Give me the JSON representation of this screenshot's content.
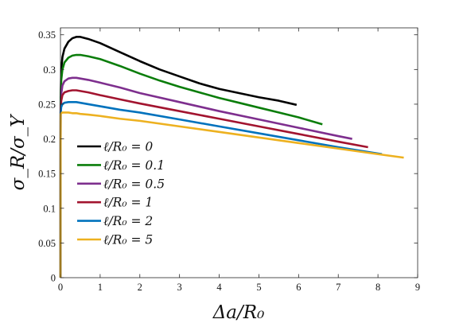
{
  "chart_data": {
    "type": "line",
    "xlabel": "Δa/R₀",
    "ylabel": "σ_R/σ_Y",
    "xlim": [
      0,
      9
    ],
    "ylim": [
      0,
      0.36
    ],
    "xticks": [
      0,
      1,
      2,
      3,
      4,
      5,
      6,
      7,
      8,
      9
    ],
    "yticks": [
      0,
      0.05,
      0.1,
      0.15,
      0.2,
      0.25,
      0.3,
      0.35
    ],
    "xtick_labels": [
      "0",
      "1",
      "2",
      "3",
      "4",
      "5",
      "6",
      "7",
      "8",
      "9"
    ],
    "ytick_labels": [
      "0",
      "0.05",
      "0.1",
      "0.15",
      "0.2",
      "0.25",
      "0.3",
      "0.35"
    ],
    "grid": false,
    "legend_position": "center-left",
    "series": [
      {
        "name": "ℓ/R₀ = 0",
        "color": "#000000",
        "x": [
          0,
          0.005,
          0.02,
          0.05,
          0.1,
          0.2,
          0.3,
          0.4,
          0.5,
          0.7,
          1.0,
          1.5,
          2.0,
          2.5,
          3.0,
          3.5,
          4.0,
          4.5,
          5.0,
          5.5,
          5.95
        ],
        "y": [
          0,
          0.26,
          0.3,
          0.318,
          0.33,
          0.34,
          0.345,
          0.347,
          0.347,
          0.344,
          0.338,
          0.325,
          0.312,
          0.3,
          0.29,
          0.28,
          0.272,
          0.266,
          0.26,
          0.255,
          0.249
        ]
      },
      {
        "name": "ℓ/R₀ = 0.1",
        "color": "#0a7d0a",
        "x": [
          0,
          0.005,
          0.02,
          0.05,
          0.1,
          0.2,
          0.3,
          0.4,
          0.5,
          0.7,
          1.0,
          1.5,
          2.0,
          2.5,
          3.0,
          3.5,
          4.0,
          4.5,
          5.0,
          5.5,
          6.0,
          6.6
        ],
        "y": [
          0,
          0.25,
          0.285,
          0.3,
          0.31,
          0.317,
          0.32,
          0.321,
          0.321,
          0.319,
          0.315,
          0.305,
          0.294,
          0.284,
          0.275,
          0.267,
          0.259,
          0.252,
          0.245,
          0.238,
          0.231,
          0.221
        ]
      },
      {
        "name": "ℓ/R₀ = 0.5",
        "color": "#7e2f8e",
        "x": [
          0,
          0.005,
          0.02,
          0.05,
          0.1,
          0.2,
          0.3,
          0.4,
          0.5,
          0.7,
          1.0,
          1.5,
          2.0,
          3.0,
          4.0,
          5.0,
          6.0,
          7.0,
          7.35
        ],
        "y": [
          0,
          0.24,
          0.265,
          0.277,
          0.283,
          0.287,
          0.288,
          0.288,
          0.287,
          0.285,
          0.281,
          0.274,
          0.266,
          0.253,
          0.24,
          0.228,
          0.216,
          0.204,
          0.2
        ]
      },
      {
        "name": "ℓ/R₀ = 1",
        "color": "#a2142f",
        "x": [
          0,
          0.005,
          0.02,
          0.05,
          0.1,
          0.2,
          0.3,
          0.4,
          0.5,
          0.7,
          1.0,
          1.5,
          2.0,
          3.0,
          4.0,
          5.0,
          6.0,
          7.0,
          7.75
        ],
        "y": [
          0,
          0.238,
          0.255,
          0.263,
          0.267,
          0.269,
          0.27,
          0.27,
          0.269,
          0.267,
          0.263,
          0.257,
          0.251,
          0.24,
          0.229,
          0.218,
          0.207,
          0.196,
          0.188
        ]
      },
      {
        "name": "ℓ/R₀ = 2",
        "color": "#0072bd",
        "x": [
          0,
          0.005,
          0.02,
          0.05,
          0.1,
          0.2,
          0.3,
          0.4,
          0.5,
          0.7,
          1.0,
          1.5,
          2.0,
          3.0,
          4.0,
          5.0,
          6.0,
          7.0,
          8.1
        ],
        "y": [
          0,
          0.237,
          0.246,
          0.25,
          0.252,
          0.253,
          0.253,
          0.253,
          0.252,
          0.25,
          0.247,
          0.242,
          0.238,
          0.228,
          0.218,
          0.208,
          0.198,
          0.188,
          0.178
        ]
      },
      {
        "name": "ℓ/R₀ = 5",
        "color": "#edb120",
        "x": [
          0,
          0.005,
          0.02,
          0.05,
          0.1,
          0.2,
          0.3,
          0.4,
          0.5,
          0.7,
          1.0,
          1.5,
          2.0,
          3.0,
          4.0,
          5.0,
          6.0,
          7.0,
          8.0,
          8.65
        ],
        "y": [
          0,
          0.236,
          0.237,
          0.238,
          0.238,
          0.238,
          0.237,
          0.237,
          0.236,
          0.235,
          0.233,
          0.229,
          0.226,
          0.218,
          0.21,
          0.202,
          0.194,
          0.186,
          0.178,
          0.173
        ]
      }
    ]
  }
}
